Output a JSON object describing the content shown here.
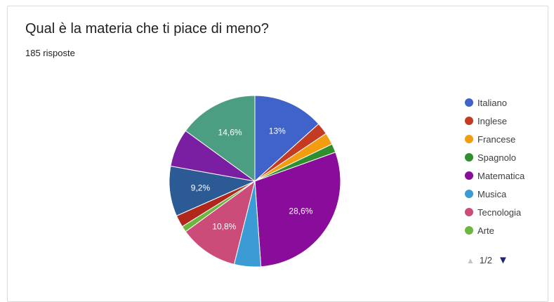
{
  "question": "Qual è la materia che ti piace di meno?",
  "responses": "185 risposte",
  "pager": {
    "label": "1/2",
    "up_icon": "▲",
    "down_icon": "▼"
  },
  "chart_data": {
    "type": "pie",
    "slices": [
      {
        "name": "Italiano",
        "value": 13.0,
        "label": "13%",
        "color": "#3f63c9"
      },
      {
        "name": "Inglese",
        "value": 2.2,
        "label": "",
        "color": "#c23b22"
      },
      {
        "name": "Francese",
        "value": 2.2,
        "label": "",
        "color": "#f29d10"
      },
      {
        "name": "Spagnolo",
        "value": 1.6,
        "label": "",
        "color": "#2f8f2f"
      },
      {
        "name": "Matematica",
        "value": 28.6,
        "label": "28,6%",
        "color": "#8a0c9b"
      },
      {
        "name": "Musica",
        "value": 4.9,
        "label": "",
        "color": "#3a9bd5"
      },
      {
        "name": "Tecnologia",
        "value": 10.8,
        "label": "10,8%",
        "color": "#cc4c79"
      },
      {
        "name": "Arte",
        "value": 1.1,
        "label": "",
        "color": "#6bb73f"
      },
      {
        "name": "",
        "value": 2.2,
        "label": "",
        "color": "#b0281c"
      },
      {
        "name": "",
        "value": 9.2,
        "label": "9,2%",
        "color": "#2c5a94"
      },
      {
        "name": "",
        "value": 7.0,
        "label": "",
        "color": "#7b1fa2"
      },
      {
        "name": "",
        "value": 14.6,
        "label": "14,6%",
        "color": "#4c9e82"
      }
    ],
    "legend": [
      "Italiano",
      "Inglese",
      "Francese",
      "Spagnolo",
      "Matematica",
      "Musica",
      "Tecnologia",
      "Arte"
    ],
    "legend_placement": "right",
    "start_angle_deg": 90,
    "direction": "clockwise"
  }
}
